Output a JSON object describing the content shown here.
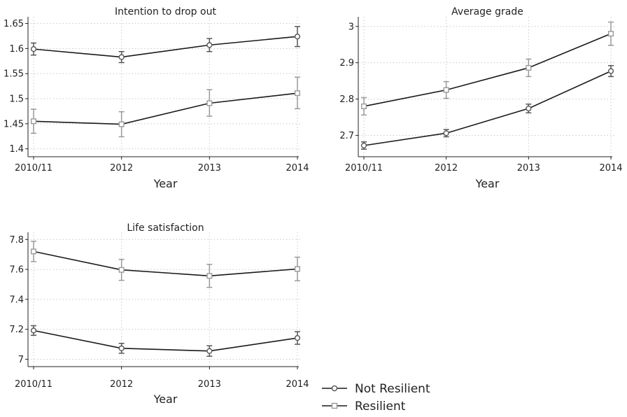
{
  "x_categories": [
    "2010/11",
    "2012",
    "2013",
    "2014"
  ],
  "chart_data": [
    {
      "type": "line",
      "title": "Intention to drop out",
      "xlabel": "Year",
      "ylabel": "",
      "ylim": [
        1.387,
        1.655
      ],
      "yticks": [
        1.4,
        1.45,
        1.5,
        1.55,
        1.6,
        1.65
      ],
      "ytick_labels": [
        "1.4",
        "1.45",
        "1.5",
        "1.55",
        "1.6",
        "1.65"
      ],
      "series": [
        {
          "name": "Not Resilient",
          "values": [
            1.599,
            1.583,
            1.607,
            1.624
          ],
          "lower": [
            1.587,
            1.572,
            1.594,
            1.604
          ],
          "upper": [
            1.611,
            1.594,
            1.62,
            1.644
          ]
        },
        {
          "name": "Resilient",
          "values": [
            1.455,
            1.449,
            1.491,
            1.511
          ],
          "lower": [
            1.431,
            1.424,
            1.465,
            1.48
          ],
          "upper": [
            1.479,
            1.474,
            1.518,
            1.543
          ]
        }
      ]
    },
    {
      "type": "line",
      "title": "Average grade",
      "xlabel": "Year",
      "ylabel": "",
      "ylim": [
        2.645,
        3.015
      ],
      "yticks": [
        2.7,
        2.8,
        2.9,
        3.0
      ],
      "ytick_labels": [
        "2.7",
        "2.8",
        "2.9",
        "3"
      ],
      "series": [
        {
          "name": "Not Resilient",
          "values": [
            2.672,
            2.706,
            2.774,
            2.877
          ],
          "lower": [
            2.662,
            2.696,
            2.762,
            2.862
          ],
          "upper": [
            2.682,
            2.716,
            2.786,
            2.892
          ]
        },
        {
          "name": "Resilient",
          "values": [
            2.78,
            2.825,
            2.886,
            2.98
          ],
          "lower": [
            2.756,
            2.802,
            2.862,
            2.948
          ],
          "upper": [
            2.804,
            2.848,
            2.91,
            3.012
          ]
        }
      ]
    },
    {
      "type": "line",
      "title": "Life satisfaction",
      "xlabel": "Year",
      "ylabel": "",
      "ylim": [
        6.96,
        7.82
      ],
      "yticks": [
        7.0,
        7.2,
        7.4,
        7.6,
        7.8
      ],
      "ytick_labels": [
        "7",
        "7.2",
        "7.4",
        "7.6",
        "7.8"
      ],
      "series": [
        {
          "name": "Not Resilient",
          "values": [
            7.192,
            7.073,
            7.055,
            7.142
          ],
          "lower": [
            7.16,
            7.04,
            7.02,
            7.1
          ],
          "upper": [
            7.224,
            7.106,
            7.09,
            7.184
          ]
        },
        {
          "name": "Resilient",
          "values": [
            7.72,
            7.597,
            7.557,
            7.603
          ],
          "lower": [
            7.652,
            7.527,
            7.48,
            7.524
          ],
          "upper": [
            7.788,
            7.667,
            7.634,
            7.682
          ]
        }
      ]
    }
  ],
  "legend": {
    "items": [
      {
        "label": "Not Resilient",
        "marker": "circle"
      },
      {
        "label": "Resilient",
        "marker": "square"
      }
    ]
  },
  "colors": {
    "not_resilient_line": "#1a1a1a",
    "not_resilient_errorbar": "#555555",
    "resilient_line": "#1a1a1a",
    "resilient_errorbar": "#999999",
    "grid": "#c8c8c8",
    "axis": "#222222"
  }
}
